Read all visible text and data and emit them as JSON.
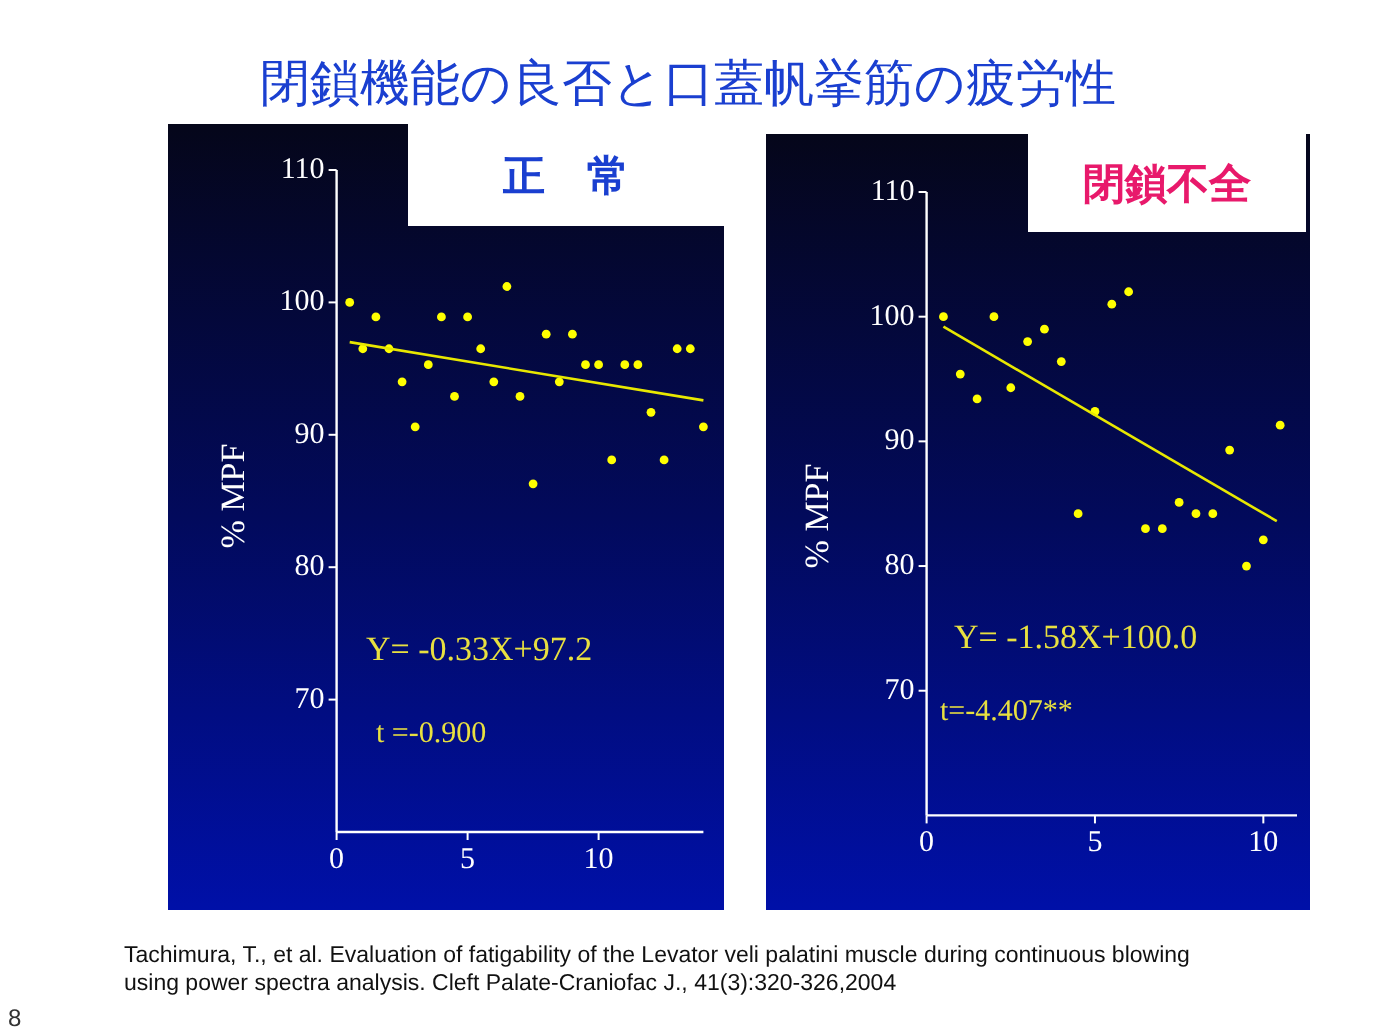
{
  "chart_data": [
    {
      "type": "scatter",
      "title": "閉鎖機能の良否と口蓋帆挙筋の疲労性",
      "subtitle": "正　常",
      "ylabel": "% MPF",
      "xlim": [
        0,
        14
      ],
      "ylim": [
        60,
        110
      ],
      "xticks": [
        0,
        5,
        10
      ],
      "yticks": [
        70,
        80,
        90,
        100,
        110
      ],
      "grid": false,
      "series": [
        {
          "marker": "circle",
          "color": "#ffff00",
          "x": [
            0.5,
            1,
            1.5,
            2,
            2.5,
            3,
            3.5,
            4,
            4.5,
            5,
            5.5,
            6,
            6.5,
            7,
            7.5,
            8,
            8.5,
            9,
            9.5,
            10,
            10.5,
            11,
            11.5,
            12,
            12.5,
            13,
            13.5,
            14
          ],
          "values": [
            100,
            96.5,
            98.9,
            96.5,
            94,
            90.6,
            95.3,
            98.9,
            92.9,
            98.9,
            96.5,
            94,
            101.2,
            92.9,
            86.3,
            97.6,
            94,
            97.6,
            95.3,
            95.3,
            88.1,
            95.3,
            95.3,
            91.7,
            88.1,
            96.5,
            96.5,
            90.6
          ]
        },
        {
          "type": "line",
          "marker": "none",
          "color": "#e8e800",
          "x": [
            0.5,
            14
          ],
          "values": [
            97.0,
            92.6
          ]
        }
      ],
      "annotations": [
        "Y= -0.33X+97.2",
        "t =-0.900",
        "Tachimura, T., et al. Evaluation of fatigability of the Levator veli palatini muscle during continuous blowing using power spectra analysis. Cleft Palate-Craniofac J., 41(3):320-326,2004",
        "8"
      ]
    },
    {
      "type": "scatter",
      "subtitle": "閉鎖不全",
      "ylabel": "% MPF",
      "xlim": [
        0,
        11
      ],
      "ylim": [
        60,
        110
      ],
      "xticks": [
        0,
        5,
        10
      ],
      "yticks": [
        70,
        80,
        90,
        100,
        110
      ],
      "grid": false,
      "series": [
        {
          "marker": "circle",
          "color": "#ffff00",
          "x": [
            0.5,
            1,
            1.5,
            2,
            2.5,
            3,
            3.5,
            4,
            4.5,
            5,
            5.5,
            6,
            6.5,
            7,
            7.5,
            8,
            8.5,
            9,
            9.5,
            10,
            10.5
          ],
          "values": [
            100,
            95.4,
            93.4,
            100,
            94.3,
            98,
            99,
            96.4,
            84.2,
            92.4,
            101,
            102,
            83,
            83,
            85.1,
            84.2,
            84.2,
            89.3,
            80,
            82.1,
            91.3
          ]
        },
        {
          "type": "line",
          "marker": "none",
          "color": "#e8e800",
          "x": [
            0.5,
            10.4
          ],
          "values": [
            99.2,
            83.6
          ]
        }
      ],
      "annotations": [
        "Y= -1.58X+100.0",
        "t=-4.407**"
      ]
    }
  ]
}
